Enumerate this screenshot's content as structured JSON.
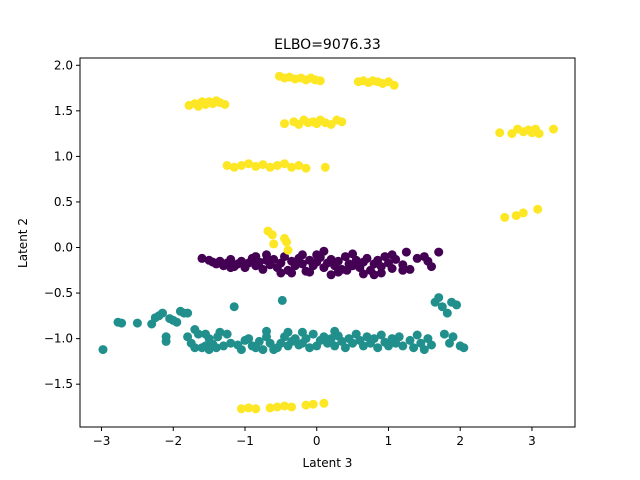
{
  "chart_data": {
    "type": "scatter",
    "title": "ELBO=9076.33",
    "xlabel": "Latent 3",
    "ylabel": "Latent 2",
    "xlim": [
      -3.3,
      3.6
    ],
    "ylim": [
      -1.97,
      2.08
    ],
    "xticks": [
      -3,
      -2,
      -1,
      0,
      1,
      2,
      3
    ],
    "yticks": [
      -1.5,
      -1.0,
      -0.5,
      0.0,
      0.5,
      1.0,
      1.5,
      2.0
    ],
    "xtick_labels": [
      "−3",
      "−2",
      "−1",
      "0",
      "1",
      "2",
      "3"
    ],
    "ytick_labels": [
      "−1.5",
      "−1.0",
      "−0.5",
      "0.0",
      "0.5",
      "1.0",
      "1.5",
      "2.0"
    ],
    "grid": false,
    "legend": "none",
    "series": [
      {
        "color": "#440154",
        "points": [
          [
            -1.5,
            -0.14
          ],
          [
            -1.45,
            -0.16
          ],
          [
            -1.4,
            -0.18
          ],
          [
            -1.35,
            -0.15
          ],
          [
            -1.3,
            -0.2
          ],
          [
            -1.25,
            -0.17
          ],
          [
            -1.2,
            -0.13
          ],
          [
            -1.15,
            -0.21
          ],
          [
            -1.1,
            -0.18
          ],
          [
            -1.05,
            -0.15
          ],
          [
            -1.0,
            -0.22
          ],
          [
            -0.95,
            -0.17
          ],
          [
            -0.9,
            -0.12
          ],
          [
            -0.85,
            -0.2
          ],
          [
            -0.8,
            -0.16
          ],
          [
            -0.75,
            -0.24
          ],
          [
            -0.7,
            -0.14
          ],
          [
            -0.65,
            -0.19
          ],
          [
            -0.6,
            -0.13
          ],
          [
            -0.55,
            -0.22
          ],
          [
            -0.5,
            -0.17
          ],
          [
            -0.45,
            -0.1
          ],
          [
            -0.4,
            -0.25
          ],
          [
            -0.35,
            -0.15
          ],
          [
            -0.3,
            -0.2
          ],
          [
            -0.25,
            -0.12
          ],
          [
            -0.2,
            -0.18
          ],
          [
            -0.15,
            -0.26
          ],
          [
            -0.1,
            -0.14
          ],
          [
            -0.05,
            -0.2
          ],
          [
            0.0,
            -0.16
          ],
          [
            0.05,
            -0.11
          ],
          [
            0.1,
            -0.22
          ],
          [
            0.15,
            -0.17
          ],
          [
            0.2,
            -0.13
          ],
          [
            0.25,
            -0.2
          ],
          [
            0.3,
            -0.15
          ],
          [
            0.35,
            -0.24
          ],
          [
            0.4,
            -0.1
          ],
          [
            0.45,
            -0.18
          ],
          [
            0.5,
            -0.2
          ],
          [
            0.55,
            -0.14
          ],
          [
            0.6,
            -0.22
          ],
          [
            0.65,
            -0.16
          ],
          [
            0.7,
            -0.12
          ],
          [
            0.75,
            -0.25
          ],
          [
            0.8,
            -0.18
          ],
          [
            0.85,
            -0.14
          ],
          [
            0.9,
            -0.21
          ],
          [
            0.95,
            -0.1
          ],
          [
            1.0,
            -0.17
          ],
          [
            1.05,
            -0.23
          ],
          [
            1.1,
            -0.13
          ],
          [
            1.2,
            -0.19
          ],
          [
            1.3,
            -0.24
          ],
          [
            1.4,
            -0.12
          ],
          [
            1.5,
            -0.1
          ],
          [
            1.6,
            -0.21
          ],
          [
            1.7,
            -0.05
          ],
          [
            1.55,
            -0.15
          ],
          [
            -0.5,
            -0.28
          ],
          [
            -0.1,
            -0.27
          ],
          [
            0.3,
            -0.27
          ],
          [
            0.8,
            -0.3
          ],
          [
            0.0,
            -0.08
          ],
          [
            0.5,
            -0.07
          ],
          [
            -0.7,
            -0.08
          ],
          [
            0.2,
            -0.3
          ],
          [
            -0.35,
            -0.28
          ],
          [
            1.2,
            -0.25
          ],
          [
            0.65,
            -0.29
          ],
          [
            -1.6,
            -0.12
          ],
          [
            -0.85,
            -0.1
          ],
          [
            0.42,
            -0.25
          ],
          [
            1.05,
            -0.08
          ],
          [
            1.25,
            -0.05
          ],
          [
            -0.2,
            -0.08
          ],
          [
            0.9,
            -0.28
          ],
          [
            -1.2,
            -0.22
          ],
          [
            0.1,
            -0.04
          ]
        ]
      },
      {
        "color": "#21908d",
        "points": [
          [
            -2.98,
            -1.12
          ],
          [
            -2.77,
            -0.82
          ],
          [
            -2.72,
            -0.83
          ],
          [
            -2.5,
            -0.83
          ],
          [
            -2.3,
            -0.84
          ],
          [
            -2.25,
            -0.77
          ],
          [
            -2.2,
            -0.75
          ],
          [
            -2.15,
            -0.72
          ],
          [
            -2.1,
            -0.98
          ],
          [
            -2.1,
            -1.03
          ],
          [
            -2.05,
            -0.78
          ],
          [
            -2.0,
            -0.8
          ],
          [
            -1.95,
            -0.82
          ],
          [
            -1.9,
            -0.7
          ],
          [
            -1.85,
            -0.72
          ],
          [
            -1.8,
            -0.72
          ],
          [
            -1.8,
            -0.98
          ],
          [
            -1.75,
            -1.05
          ],
          [
            -1.7,
            -1.1
          ],
          [
            -1.65,
            -0.95
          ],
          [
            -1.6,
            -1.1
          ],
          [
            -1.55,
            -1.08
          ],
          [
            -1.5,
            -1.12
          ],
          [
            -1.45,
            -1.06
          ],
          [
            -1.4,
            -1.1
          ],
          [
            -1.35,
            -0.93
          ],
          [
            -1.3,
            -1.08
          ],
          [
            -1.25,
            -0.95
          ],
          [
            -1.2,
            -1.05
          ],
          [
            -1.15,
            -0.65
          ],
          [
            -1.1,
            -1.07
          ],
          [
            -1.05,
            -1.12
          ],
          [
            -1.0,
            -1.02
          ],
          [
            -0.95,
            -1.0
          ],
          [
            -0.9,
            -1.08
          ],
          [
            -0.85,
            -1.1
          ],
          [
            -0.8,
            -1.03
          ],
          [
            -0.75,
            -1.12
          ],
          [
            -0.7,
            -0.98
          ],
          [
            -0.65,
            -1.05
          ],
          [
            -0.6,
            -1.12
          ],
          [
            -0.55,
            -1.1
          ],
          [
            -0.5,
            -1.05
          ],
          [
            -0.48,
            -0.58
          ],
          [
            -0.45,
            -0.98
          ],
          [
            -0.4,
            -1.08
          ],
          [
            -0.35,
            -1.03
          ],
          [
            -0.3,
            -1.0
          ],
          [
            -0.25,
            -1.07
          ],
          [
            -0.2,
            -1.05
          ],
          [
            -0.15,
            -1.0
          ],
          [
            -0.1,
            -1.1
          ],
          [
            -0.05,
            -0.95
          ],
          [
            0.0,
            -1.08
          ],
          [
            0.05,
            -1.02
          ],
          [
            0.1,
            -0.98
          ],
          [
            0.15,
            -1.05
          ],
          [
            0.2,
            -1.0
          ],
          [
            0.25,
            -1.08
          ],
          [
            0.3,
            -0.97
          ],
          [
            0.35,
            -1.03
          ],
          [
            0.4,
            -1.1
          ],
          [
            0.45,
            -1.0
          ],
          [
            0.5,
            -1.05
          ],
          [
            0.55,
            -0.95
          ],
          [
            0.6,
            -1.02
          ],
          [
            0.65,
            -1.08
          ],
          [
            0.7,
            -0.98
          ],
          [
            0.75,
            -1.05
          ],
          [
            0.8,
            -1.0
          ],
          [
            0.85,
            -1.1
          ],
          [
            0.9,
            -0.96
          ],
          [
            0.95,
            -1.04
          ],
          [
            1.0,
            -1.08
          ],
          [
            1.05,
            -1.0
          ],
          [
            1.1,
            -1.05
          ],
          [
            1.15,
            -0.98
          ],
          [
            1.2,
            -1.08
          ],
          [
            1.3,
            -1.02
          ],
          [
            1.35,
            -1.1
          ],
          [
            1.4,
            -0.96
          ],
          [
            1.45,
            -1.05
          ],
          [
            1.5,
            -1.12
          ],
          [
            1.55,
            -1.0
          ],
          [
            1.6,
            -1.07
          ],
          [
            1.65,
            -0.6
          ],
          [
            1.7,
            -0.55
          ],
          [
            1.75,
            -0.65
          ],
          [
            1.78,
            -0.95
          ],
          [
            1.82,
            -0.72
          ],
          [
            1.85,
            -1.05
          ],
          [
            1.88,
            -0.6
          ],
          [
            1.9,
            -0.98
          ],
          [
            1.95,
            -0.63
          ],
          [
            2.0,
            -1.08
          ],
          [
            2.05,
            -1.1
          ],
          [
            -0.7,
            -0.92
          ],
          [
            -0.4,
            -0.93
          ],
          [
            -0.2,
            -0.93
          ],
          [
            0.25,
            -0.92
          ],
          [
            -1.55,
            -0.95
          ],
          [
            -1.5,
            -1.0
          ],
          [
            -1.7,
            -0.9
          ],
          [
            -1.38,
            -0.98
          ]
        ]
      },
      {
        "color": "#fde725",
        "points": [
          [
            -1.78,
            1.56
          ],
          [
            -1.7,
            1.58
          ],
          [
            -1.65,
            1.55
          ],
          [
            -1.6,
            1.6
          ],
          [
            -1.55,
            1.57
          ],
          [
            -1.5,
            1.6
          ],
          [
            -1.45,
            1.58
          ],
          [
            -1.4,
            1.61
          ],
          [
            -1.35,
            1.59
          ],
          [
            -1.28,
            1.57
          ],
          [
            -0.52,
            1.88
          ],
          [
            -0.45,
            1.86
          ],
          [
            -0.38,
            1.87
          ],
          [
            -0.3,
            1.85
          ],
          [
            -0.22,
            1.86
          ],
          [
            -0.15,
            1.84
          ],
          [
            -0.08,
            1.86
          ],
          [
            -0.02,
            1.84
          ],
          [
            0.05,
            1.83
          ],
          [
            0.58,
            1.82
          ],
          [
            0.65,
            1.83
          ],
          [
            0.72,
            1.81
          ],
          [
            0.78,
            1.83
          ],
          [
            0.85,
            1.82
          ],
          [
            0.92,
            1.8
          ],
          [
            1.0,
            1.82
          ],
          [
            1.08,
            1.78
          ],
          [
            -0.45,
            1.36
          ],
          [
            -0.32,
            1.38
          ],
          [
            -0.25,
            1.35
          ],
          [
            -0.18,
            1.4
          ],
          [
            -0.12,
            1.37
          ],
          [
            -0.05,
            1.38
          ],
          [
            0.0,
            1.36
          ],
          [
            0.05,
            1.4
          ],
          [
            0.12,
            1.37
          ],
          [
            0.2,
            1.35
          ],
          [
            0.28,
            1.4
          ],
          [
            0.35,
            1.38
          ],
          [
            -1.25,
            0.9
          ],
          [
            -1.15,
            0.88
          ],
          [
            -1.05,
            0.9
          ],
          [
            -0.95,
            0.92
          ],
          [
            -0.85,
            0.89
          ],
          [
            -0.75,
            0.91
          ],
          [
            -0.65,
            0.88
          ],
          [
            -0.55,
            0.9
          ],
          [
            -0.45,
            0.92
          ],
          [
            -0.35,
            0.88
          ],
          [
            -0.25,
            0.9
          ],
          [
            -0.15,
            0.87
          ],
          [
            0.12,
            0.88
          ],
          [
            -0.68,
            0.18
          ],
          [
            -0.62,
            0.14
          ],
          [
            -0.6,
            0.04
          ],
          [
            -0.45,
            0.1
          ],
          [
            -0.42,
            0.06
          ],
          [
            -0.4,
            -0.03
          ],
          [
            2.55,
            1.26
          ],
          [
            2.72,
            1.25
          ],
          [
            2.8,
            1.3
          ],
          [
            2.88,
            1.27
          ],
          [
            2.95,
            1.29
          ],
          [
            3.0,
            1.26
          ],
          [
            3.05,
            1.3
          ],
          [
            3.1,
            1.25
          ],
          [
            3.3,
            1.3
          ],
          [
            2.62,
            0.33
          ],
          [
            2.78,
            0.35
          ],
          [
            2.88,
            0.38
          ],
          [
            3.08,
            0.42
          ],
          [
            -1.05,
            -1.77
          ],
          [
            -0.95,
            -1.76
          ],
          [
            -0.85,
            -1.77
          ],
          [
            -0.65,
            -1.76
          ],
          [
            -0.55,
            -1.75
          ],
          [
            -0.45,
            -1.74
          ],
          [
            -0.35,
            -1.75
          ],
          [
            -0.15,
            -1.73
          ],
          [
            -0.05,
            -1.72
          ],
          [
            0.1,
            -1.71
          ]
        ]
      }
    ]
  }
}
